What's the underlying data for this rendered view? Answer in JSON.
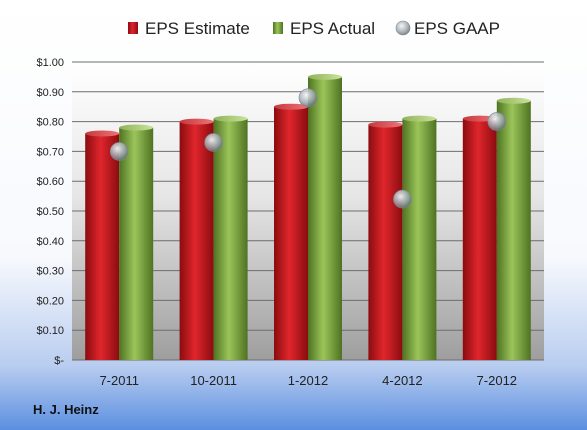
{
  "company": "H. J. Heinz",
  "chart_data": {
    "type": "bar",
    "categories": [
      "7-2011",
      "10-2011",
      "1-2012",
      "4-2012",
      "7-2012"
    ],
    "series": [
      {
        "name": "EPS Estimate",
        "kind": "bar",
        "color": "#c0131b",
        "values": [
          0.76,
          0.8,
          0.85,
          0.79,
          0.81
        ]
      },
      {
        "name": "EPS Actual",
        "kind": "bar",
        "color": "#7aa33a",
        "values": [
          0.78,
          0.81,
          0.95,
          0.81,
          0.87
        ]
      },
      {
        "name": "EPS GAAP",
        "kind": "scatter",
        "color": "#a8b1b8",
        "values": [
          0.7,
          0.73,
          0.88,
          0.54,
          0.8
        ]
      }
    ],
    "ylim": [
      0,
      1.0
    ],
    "yticks": [
      0,
      0.1,
      0.2,
      0.3,
      0.4,
      0.5,
      0.6,
      0.7,
      0.8,
      0.9,
      1.0
    ],
    "ytick_labels": [
      "$-",
      "$0.10",
      "$0.20",
      "$0.30",
      "$0.40",
      "$0.50",
      "$0.60",
      "$0.70",
      "$0.80",
      "$0.90",
      "$1.00"
    ],
    "grid": true,
    "legend": "top"
  }
}
